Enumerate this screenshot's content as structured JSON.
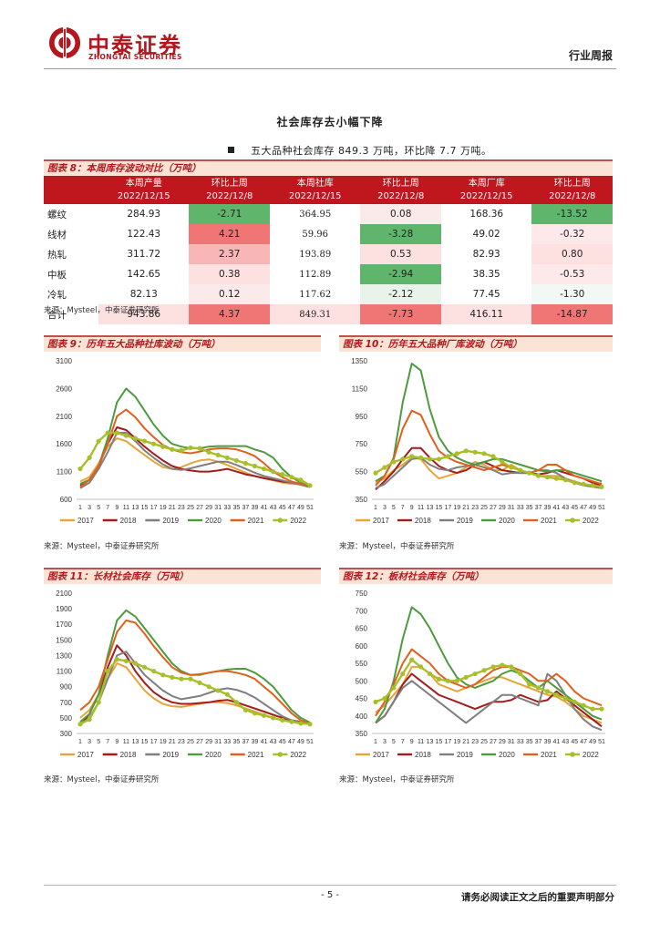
{
  "header": {
    "logo_cn": "中泰证券",
    "logo_en": "ZHONGTAI SECURITIES",
    "report_type": "行业周报"
  },
  "section_title": "社会库存去小幅下降",
  "bullet_text": "五大品种社会库存 849.3 万吨，环比降 7.7 万吨。",
  "table": {
    "caption": "图表 8：本周库存波动对比（万吨）",
    "columns": [
      {
        "line1": "本周产量",
        "line2": "2022/12/15"
      },
      {
        "line1": "环比上周",
        "line2": "2022/12/8"
      },
      {
        "line1": "本周社库",
        "line2": "2022/12/15"
      },
      {
        "line1": "环比上周",
        "line2": "2022/12/8"
      },
      {
        "line1": "本周厂库",
        "line2": "2022/12/15"
      },
      {
        "line1": "环比上周",
        "line2": "2022/12/8"
      }
    ],
    "rows": [
      {
        "name": "螺纹",
        "cells": [
          "284.93",
          "-2.71",
          "364.95",
          "0.08",
          "168.36",
          "-13.52"
        ]
      },
      {
        "name": "线材",
        "cells": [
          "122.43",
          "4.21",
          "59.96",
          "-3.28",
          "49.02",
          "-0.32"
        ]
      },
      {
        "name": "热轧",
        "cells": [
          "311.72",
          "2.37",
          "193.89",
          "0.53",
          "82.93",
          "0.80"
        ]
      },
      {
        "name": "中板",
        "cells": [
          "142.65",
          "0.38",
          "112.89",
          "-2.94",
          "38.35",
          "-0.53"
        ]
      },
      {
        "name": "冷轧",
        "cells": [
          "82.13",
          "0.12",
          "117.62",
          "-2.12",
          "77.45",
          "-1.30"
        ]
      },
      {
        "name": "合计",
        "cells": [
          "943.86",
          "4.37",
          "849.31",
          "-7.73",
          "416.11",
          "-14.87"
        ]
      }
    ],
    "source": "来源：Mysteel，中泰证券研究所"
  },
  "colors": {
    "brand": "#b4161d",
    "s2017": "#e8a33a",
    "s2018": "#a31c1c",
    "s2019": "#7f7f7f",
    "s2020": "#4e9a3e",
    "s2021": "#e0601c",
    "s2022": "#a8bf2a"
  },
  "footer": {
    "page": "- 5 -",
    "disclaimer": "请务必阅读正文之后的重要声明部分"
  },
  "chart_data": [
    {
      "id": "c9",
      "type": "line",
      "title": "图表 9：历年五大品种社库波动（万吨）",
      "source": "来源：Mysteel，中泰证券研究所",
      "x_ticks": [
        "1",
        "3",
        "5",
        "7",
        "9",
        "11",
        "13",
        "15",
        "17",
        "19",
        "21",
        "23",
        "25",
        "27",
        "29",
        "31",
        "33",
        "35",
        "37",
        "39",
        "41",
        "43",
        "45",
        "47",
        "49",
        "51"
      ],
      "ylim": [
        600,
        3100
      ],
      "y_ticks": [
        600,
        1100,
        1600,
        2100,
        2600,
        3100
      ],
      "series": [
        {
          "name": "2017",
          "values": [
            920,
            1000,
            1250,
            1550,
            1700,
            1650,
            1520,
            1400,
            1280,
            1180,
            1150,
            1180,
            1250,
            1300,
            1320,
            1280,
            1220,
            1150,
            1080,
            1020,
            980,
            940,
            900,
            880,
            870,
            860
          ]
        },
        {
          "name": "2018",
          "values": [
            850,
            950,
            1200,
            1600,
            1900,
            1850,
            1700,
            1550,
            1420,
            1300,
            1200,
            1150,
            1120,
            1100,
            1100,
            1120,
            1150,
            1100,
            1050,
            1020,
            980,
            950,
            920,
            900,
            880,
            860
          ]
        },
        {
          "name": "2019",
          "values": [
            800,
            900,
            1150,
            1450,
            1800,
            1800,
            1650,
            1480,
            1350,
            1230,
            1150,
            1130,
            1160,
            1200,
            1240,
            1280,
            1280,
            1220,
            1150,
            1080,
            1020,
            980,
            940,
            900,
            860,
            820
          ]
        },
        {
          "name": "2020",
          "values": [
            880,
            950,
            1200,
            1700,
            2350,
            2600,
            2450,
            2200,
            1950,
            1750,
            1600,
            1550,
            1520,
            1520,
            1550,
            1560,
            1560,
            1560,
            1560,
            1500,
            1450,
            1350,
            1150,
            1000,
            900,
            830
          ]
        },
        {
          "name": "2021",
          "values": [
            820,
            950,
            1200,
            1600,
            2100,
            2220,
            2080,
            1880,
            1720,
            1580,
            1500,
            1450,
            1430,
            1460,
            1500,
            1520,
            1520,
            1500,
            1450,
            1380,
            1250,
            1100,
            1000,
            920,
            880,
            850
          ]
        },
        {
          "name": "2022",
          "values": [
            1150,
            1350,
            1650,
            1800,
            1800,
            1750,
            1700,
            1650,
            1600,
            1550,
            1500,
            1480,
            1530,
            1520,
            1450,
            1400,
            1350,
            1300,
            1250,
            1200,
            1150,
            1100,
            1050,
            1000,
            950,
            850
          ]
        }
      ]
    },
    {
      "id": "c10",
      "type": "line",
      "title": "图表 10：历年五大品种厂库波动（万吨）",
      "source": "来源：Mysteel，中泰证券研究所",
      "x_ticks": [
        "1",
        "3",
        "5",
        "7",
        "9",
        "11",
        "13",
        "15",
        "17",
        "19",
        "21",
        "23",
        "25",
        "27",
        "29",
        "31",
        "33",
        "35",
        "37",
        "39",
        "41",
        "43",
        "45",
        "47",
        "49",
        "51"
      ],
      "ylim": [
        350,
        1350
      ],
      "y_ticks": [
        350,
        550,
        750,
        950,
        1150,
        1350
      ],
      "series": [
        {
          "name": "2017",
          "values": [
            470,
            500,
            560,
            600,
            650,
            640,
            560,
            500,
            520,
            540,
            580,
            620,
            600,
            560,
            560,
            600,
            560,
            540,
            520,
            520,
            520,
            500,
            480,
            460,
            450,
            470
          ]
        },
        {
          "name": "2018",
          "values": [
            420,
            480,
            550,
            640,
            720,
            720,
            650,
            590,
            560,
            540,
            560,
            600,
            620,
            590,
            560,
            550,
            540,
            540,
            530,
            540,
            560,
            540,
            520,
            500,
            470,
            450
          ]
        },
        {
          "name": "2019",
          "values": [
            430,
            460,
            520,
            580,
            640,
            650,
            600,
            570,
            560,
            580,
            590,
            600,
            580,
            560,
            530,
            540,
            540,
            540,
            560,
            560,
            540,
            500,
            470,
            450,
            440,
            430
          ]
        },
        {
          "name": "2020",
          "values": [
            480,
            520,
            650,
            1050,
            1330,
            1280,
            1000,
            800,
            700,
            650,
            620,
            600,
            620,
            640,
            640,
            620,
            600,
            580,
            560,
            550,
            560,
            560,
            540,
            520,
            500,
            480
          ]
        },
        {
          "name": "2021",
          "values": [
            450,
            520,
            640,
            860,
            990,
            960,
            820,
            700,
            650,
            620,
            600,
            580,
            560,
            580,
            600,
            580,
            560,
            540,
            560,
            600,
            600,
            560,
            520,
            500,
            480,
            460
          ]
        },
        {
          "name": "2022",
          "values": [
            540,
            580,
            620,
            640,
            660,
            650,
            640,
            640,
            660,
            680,
            700,
            690,
            680,
            660,
            620,
            580,
            560,
            540,
            520,
            510,
            500,
            490,
            470,
            460,
            450,
            440
          ]
        }
      ]
    },
    {
      "id": "c11",
      "type": "line",
      "title": "图表 11：长材社会库存（万吨）",
      "source": "来源：Mysteel，中泰证券研究所",
      "x_ticks": [
        "1",
        "3",
        "5",
        "7",
        "9",
        "11",
        "13",
        "15",
        "17",
        "19",
        "21",
        "23",
        "25",
        "27",
        "29",
        "31",
        "33",
        "35",
        "37",
        "39",
        "41",
        "43",
        "45",
        "47",
        "49",
        "51"
      ],
      "ylim": [
        300,
        2100
      ],
      "y_ticks": [
        300,
        500,
        700,
        900,
        1100,
        1300,
        1500,
        1700,
        1900,
        2100
      ],
      "series": [
        {
          "name": "2017",
          "values": [
            500,
            600,
            800,
            1000,
            1200,
            1150,
            1000,
            850,
            750,
            680,
            650,
            640,
            660,
            680,
            700,
            700,
            690,
            660,
            620,
            580,
            540,
            500,
            470,
            450,
            440,
            430
          ]
        },
        {
          "name": "2018",
          "values": [
            400,
            550,
            800,
            1150,
            1430,
            1300,
            1100,
            950,
            830,
            750,
            700,
            680,
            680,
            690,
            700,
            720,
            730,
            700,
            660,
            620,
            580,
            540,
            500,
            470,
            450,
            430
          ]
        },
        {
          "name": "2019",
          "values": [
            420,
            500,
            700,
            1000,
            1300,
            1350,
            1200,
            1050,
            950,
            850,
            780,
            740,
            760,
            780,
            820,
            860,
            880,
            860,
            820,
            760,
            680,
            600,
            520,
            470,
            440,
            420
          ]
        },
        {
          "name": "2020",
          "values": [
            450,
            550,
            800,
            1300,
            1750,
            1880,
            1800,
            1650,
            1500,
            1350,
            1200,
            1100,
            1050,
            1050,
            1080,
            1100,
            1120,
            1130,
            1130,
            1080,
            1000,
            900,
            750,
            600,
            500,
            440
          ]
        },
        {
          "name": "2021",
          "values": [
            600,
            700,
            900,
            1250,
            1600,
            1750,
            1720,
            1580,
            1420,
            1280,
            1150,
            1080,
            1050,
            1060,
            1080,
            1100,
            1100,
            1080,
            1050,
            1000,
            900,
            800,
            680,
            560,
            470,
            420
          ]
        },
        {
          "name": "2022",
          "values": [
            420,
            480,
            700,
            1100,
            1250,
            1230,
            1200,
            1150,
            1100,
            1050,
            1020,
            1000,
            1000,
            950,
            900,
            850,
            800,
            700,
            600,
            560,
            530,
            500,
            470,
            450,
            430,
            420
          ]
        }
      ]
    },
    {
      "id": "c12",
      "type": "line",
      "title": "图表 12：板材社会库存（万吨）",
      "source": "来源：Mysteel，中泰证券研究所",
      "x_ticks": [
        "1",
        "3",
        "5",
        "7",
        "9",
        "11",
        "13",
        "15",
        "17",
        "19",
        "21",
        "23",
        "25",
        "27",
        "29",
        "31",
        "33",
        "35",
        "37",
        "39",
        "41",
        "43",
        "45",
        "47",
        "49",
        "51"
      ],
      "ylim": [
        350,
        750
      ],
      "y_ticks": [
        350,
        400,
        450,
        500,
        550,
        600,
        650,
        700,
        750
      ],
      "series": [
        {
          "name": "2017",
          "values": [
            410,
            430,
            460,
            490,
            540,
            540,
            520,
            490,
            480,
            470,
            480,
            490,
            500,
            510,
            510,
            500,
            490,
            480,
            470,
            460,
            455,
            440,
            420,
            400,
            390,
            380
          ]
        },
        {
          "name": "2018",
          "values": [
            380,
            400,
            440,
            490,
            520,
            500,
            480,
            460,
            450,
            440,
            430,
            420,
            430,
            440,
            440,
            445,
            460,
            450,
            440,
            445,
            470,
            450,
            430,
            410,
            390,
            370
          ]
        },
        {
          "name": "2019",
          "values": [
            380,
            400,
            440,
            480,
            500,
            480,
            460,
            440,
            420,
            400,
            380,
            400,
            420,
            440,
            460,
            460,
            450,
            440,
            430,
            520,
            500,
            460,
            420,
            390,
            370,
            360
          ]
        },
        {
          "name": "2020",
          "values": [
            380,
            420,
            500,
            620,
            710,
            690,
            650,
            600,
            550,
            510,
            490,
            480,
            490,
            500,
            520,
            530,
            520,
            500,
            480,
            500,
            480,
            460,
            440,
            420,
            400,
            390
          ]
        },
        {
          "name": "2021",
          "values": [
            400,
            440,
            490,
            550,
            590,
            570,
            550,
            520,
            500,
            490,
            480,
            490,
            510,
            530,
            540,
            540,
            530,
            520,
            500,
            500,
            520,
            500,
            470,
            450,
            440,
            430
          ]
        },
        {
          "name": "2022",
          "values": [
            440,
            450,
            480,
            520,
            560,
            540,
            520,
            505,
            500,
            500,
            510,
            520,
            530,
            540,
            545,
            540,
            520,
            490,
            480,
            470,
            460,
            450,
            440,
            430,
            420,
            420
          ]
        }
      ]
    }
  ]
}
